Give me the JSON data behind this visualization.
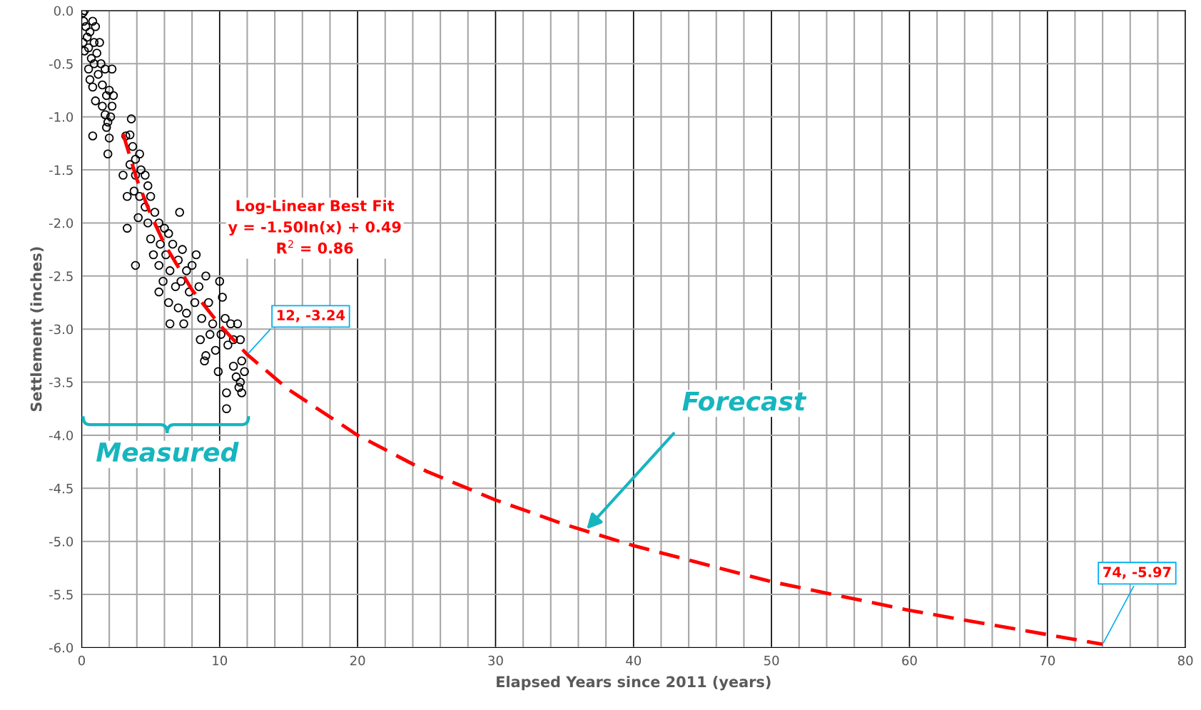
{
  "chart_data": {
    "type": "scatter",
    "xlabel": "Elapsed Years since 2011 (years)",
    "ylabel": "Settlement (inches)",
    "xlim": [
      0,
      80
    ],
    "ylim": [
      -6,
      0
    ],
    "xticks": [
      0,
      {
        "value": 2,
        "label": null
      },
      {
        "value": 4,
        "label": null
      },
      {
        "value": 6,
        "label": null
      },
      {
        "value": 8,
        "label": null
      },
      10,
      {
        "value": 12,
        "label": null
      },
      {
        "value": 14,
        "label": null
      },
      {
        "value": 16,
        "label": null
      },
      {
        "value": 18,
        "label": null
      },
      20,
      {
        "value": 22,
        "label": null
      },
      {
        "value": 24,
        "label": null
      },
      {
        "value": 26,
        "label": null
      },
      {
        "value": 28,
        "label": null
      },
      30,
      {
        "value": 32,
        "label": null
      },
      {
        "value": 34,
        "label": null
      },
      {
        "value": 36,
        "label": null
      },
      {
        "value": 38,
        "label": null
      },
      40,
      {
        "value": 42,
        "label": null
      },
      {
        "value": 44,
        "label": null
      },
      {
        "value": 46,
        "label": null
      },
      {
        "value": 48,
        "label": null
      },
      50,
      {
        "value": 52,
        "label": null
      },
      {
        "value": 54,
        "label": null
      },
      {
        "value": 56,
        "label": null
      },
      {
        "value": 58,
        "label": null
      },
      60,
      {
        "value": 62,
        "label": null
      },
      {
        "value": 64,
        "label": null
      },
      {
        "value": 66,
        "label": null
      },
      {
        "value": 68,
        "label": null
      },
      70,
      {
        "value": 72,
        "label": null
      },
      {
        "value": 74,
        "label": null
      },
      {
        "value": 76,
        "label": null
      },
      {
        "value": 78,
        "label": null
      },
      80
    ],
    "yticks": [
      {
        "value": -6,
        "label": "-6.0"
      },
      {
        "value": -5.5,
        "label": "-5.5"
      },
      {
        "value": -5,
        "label": "-5.0"
      },
      {
        "value": -4.5,
        "label": "-4.5"
      },
      {
        "value": -4,
        "label": "-4.0"
      },
      {
        "value": -3.5,
        "label": "-3.5"
      },
      {
        "value": -3,
        "label": "-3.0"
      },
      {
        "value": -2.5,
        "label": "-2.5"
      },
      {
        "value": -2,
        "label": "-2.0"
      },
      {
        "value": -1.5,
        "label": "-1.5"
      },
      {
        "value": -1,
        "label": "-1.0"
      },
      {
        "value": -0.5,
        "label": "-0.5"
      },
      {
        "value": 0,
        "label": "0.0"
      }
    ],
    "grid": true,
    "series": [
      {
        "color": "#000000",
        "marker": "circle",
        "x": [
          0.1,
          0.2,
          0.15,
          0.3,
          0.1,
          0.4,
          0.5,
          0.2,
          0.6,
          0.8,
          0.9,
          1.0,
          0.7,
          0.5,
          0.9,
          1.1,
          0.6,
          1.2,
          1.3,
          0.8,
          1.4,
          1.5,
          1.0,
          1.7,
          1.5,
          1.8,
          2.0,
          1.7,
          2.2,
          1.9,
          2.1,
          2.3,
          2.2,
          1.8,
          0.8,
          1.9,
          2.0,
          3.6,
          3.5,
          3.2,
          3.7,
          3.0,
          3.5,
          3.9,
          4.2,
          3.3,
          3.9,
          4.3,
          4.6,
          3.8,
          4.2,
          4.8,
          4.1,
          4.6,
          5.0,
          3.3,
          3.9,
          4.8,
          5.3,
          5.6,
          5.0,
          5.2,
          5.7,
          6.0,
          6.3,
          5.6,
          6.1,
          6.6,
          5.9,
          6.4,
          7.1,
          7.0,
          6.8,
          7.3,
          5.6,
          6.3,
          7.2,
          7.6,
          7.0,
          7.8,
          7.4,
          8.0,
          8.3,
          8.2,
          6.4,
          7.6,
          8.5,
          8.7,
          9.0,
          8.6,
          9.2,
          9.5,
          9.0,
          9.3,
          8.9,
          9.7,
          10.0,
          10.2,
          10.1,
          10.4,
          10.6,
          9.9,
          10.8,
          11.0,
          11.3,
          11.0,
          11.5,
          11.6,
          11.2,
          11.8,
          10.5,
          11.4,
          11.6,
          10.5,
          11.5
        ],
        "values": [
          -0.02,
          0,
          -0.1,
          -0.15,
          -0.3,
          -0.25,
          -0.35,
          -0.38,
          -0.2,
          -0.1,
          -0.3,
          -0.15,
          -0.45,
          -0.55,
          -0.5,
          -0.4,
          -0.65,
          -0.6,
          -0.3,
          -0.72,
          -0.5,
          -0.7,
          -0.85,
          -0.55,
          -0.9,
          -0.8,
          -0.75,
          -0.98,
          -0.9,
          -1.05,
          -1.0,
          -0.8,
          -0.55,
          -1.1,
          -1.18,
          -1.35,
          -1.2,
          -1.02,
          -1.17,
          -1.18,
          -1.28,
          -1.55,
          -1.45,
          -1.4,
          -1.35,
          -1.75,
          -1.55,
          -1.5,
          -1.55,
          -1.7,
          -1.75,
          -1.65,
          -1.95,
          -1.85,
          -1.75,
          -2.05,
          -2.4,
          -2.0,
          -1.9,
          -2.0,
          -2.15,
          -2.3,
          -2.2,
          -2.05,
          -2.1,
          -2.4,
          -2.3,
          -2.2,
          -2.55,
          -2.45,
          -1.9,
          -2.35,
          -2.6,
          -2.25,
          -2.65,
          -2.75,
          -2.55,
          -2.45,
          -2.8,
          -2.65,
          -2.95,
          -2.4,
          -2.3,
          -2.75,
          -2.95,
          -2.85,
          -2.6,
          -2.9,
          -2.5,
          -3.1,
          -2.75,
          -2.95,
          -3.25,
          -3.05,
          -3.3,
          -3.2,
          -2.55,
          -2.7,
          -3.05,
          -2.9,
          -3.15,
          -3.4,
          -2.95,
          -3.1,
          -2.95,
          -3.35,
          -3.1,
          -3.3,
          -3.45,
          -3.4,
          -3.6,
          -3.55,
          -3.6,
          -3.75,
          -3.5
        ]
      },
      {
        "type": "line",
        "color": "#ff0000",
        "line_style": "dashed",
        "x": [
          3,
          4,
          5,
          6,
          8,
          10,
          12,
          15,
          20,
          25,
          30,
          35,
          40,
          50,
          60,
          74
        ],
        "values": [
          -1.16,
          -1.59,
          -1.92,
          -2.2,
          -2.63,
          -2.96,
          -3.24,
          -3.57,
          -4.0,
          -4.34,
          -4.61,
          -4.84,
          -5.04,
          -5.38,
          -5.65,
          -5.97
        ]
      }
    ],
    "annotations": [
      "Log-Linear Best Fit\ny = -1.50ln(x) + 0.49\nR$^{2}$ = 0.86",
      {
        "text": "12, -3.24",
        "x": 12,
        "y": -3.24
      },
      {
        "text": "74, -5.97",
        "x": 74,
        "y": -5.97
      },
      "Forecast",
      "Measured"
    ]
  }
}
